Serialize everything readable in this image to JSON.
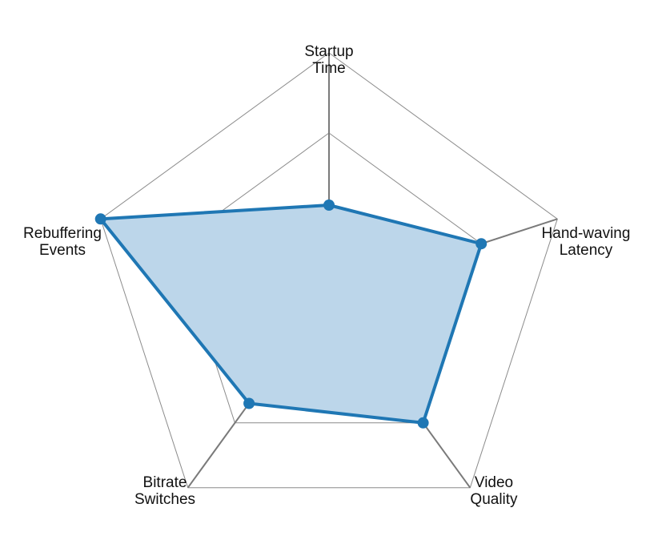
{
  "chart_data": {
    "type": "radar",
    "axes": [
      {
        "label": [
          "Startup",
          "Time"
        ]
      },
      {
        "label": [
          "Hand-waving",
          "Latency"
        ]
      },
      {
        "label": [
          "Video",
          "Quality"
        ]
      },
      {
        "label": [
          "Bitrate",
          "Switches"
        ]
      },
      {
        "label": [
          "Rebuffering",
          "Events"
        ]
      }
    ],
    "range": [
      0,
      3
    ],
    "rings": 3,
    "series": [
      {
        "values": [
          1.1,
          2.0,
          2.0,
          1.7,
          3.0
        ],
        "color": "#1f77b4",
        "fill": "#bcd6ea"
      }
    ],
    "grid": true,
    "legend": "none"
  }
}
